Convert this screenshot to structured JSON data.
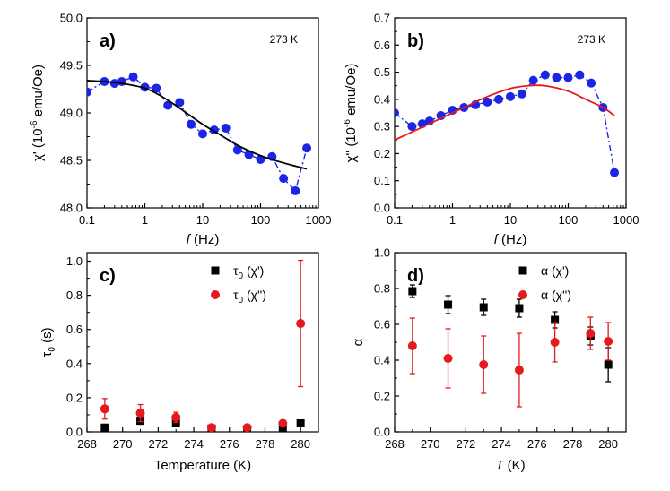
{
  "chart_data": [
    {
      "type": "scatter",
      "panel": "a)",
      "temperature_label": "273 K",
      "xscale": "log",
      "xlim": [
        0.1,
        1000
      ],
      "ylim": [
        48.0,
        50.0
      ],
      "xticks": [
        0.1,
        1,
        10,
        100,
        1000
      ],
      "xticklabels": [
        "0.1",
        "1",
        "10",
        "100",
        "1000"
      ],
      "yticks": [
        48.0,
        48.5,
        49.0,
        49.5,
        50.0
      ],
      "yticklabels": [
        "48.0",
        "48.5",
        "49.0",
        "49.5",
        "50.0"
      ],
      "xlabel_italic": "f",
      "xlabel_rest": " (Hz)",
      "ylabel": "χ' (10",
      "ylabel_exp": "-6",
      "ylabel_rest": " emu/Oe)",
      "series": [
        {
          "name": "data",
          "style": "blue markers with dash-dot line",
          "color": "#1c24e6",
          "x": [
            0.1,
            0.2,
            0.3,
            0.4,
            0.63,
            1.0,
            1.58,
            2.5,
            4.0,
            6.3,
            10,
            15.8,
            25,
            40,
            63,
            100,
            158,
            250,
            400,
            630
          ],
          "y": [
            49.22,
            49.33,
            49.31,
            49.33,
            49.38,
            49.27,
            49.26,
            49.08,
            49.11,
            48.88,
            48.78,
            48.82,
            48.84,
            48.61,
            48.56,
            48.51,
            48.54,
            48.31,
            48.18,
            48.63
          ]
        },
        {
          "name": "fit",
          "style": "solid line",
          "color": "#000000",
          "x": [
            0.1,
            0.2,
            0.4,
            1.0,
            2.0,
            4.0,
            10,
            20,
            40,
            100,
            200,
            400,
            630
          ],
          "y": [
            49.34,
            49.33,
            49.31,
            49.26,
            49.17,
            49.05,
            48.88,
            48.77,
            48.66,
            48.55,
            48.49,
            48.44,
            48.41
          ]
        }
      ]
    },
    {
      "type": "scatter",
      "panel": "b)",
      "temperature_label": "273 K",
      "xscale": "log",
      "xlim": [
        0.1,
        1000
      ],
      "ylim": [
        0.0,
        0.7
      ],
      "xticks": [
        0.1,
        1,
        10,
        100,
        1000
      ],
      "xticklabels": [
        "0.1",
        "1",
        "10",
        "100",
        "1000"
      ],
      "yticks": [
        0.0,
        0.1,
        0.2,
        0.3,
        0.4,
        0.5,
        0.6,
        0.7
      ],
      "yticklabels": [
        "0.0",
        "0.1",
        "0.2",
        "0.3",
        "0.4",
        "0.5",
        "0.6",
        "0.7"
      ],
      "xlabel_italic": "f",
      "xlabel_rest": " (Hz)",
      "ylabel": "χ'' (10",
      "ylabel_exp": "-6",
      "ylabel_rest": " emu/Oe)",
      "series": [
        {
          "name": "data",
          "style": "blue markers with dash-dot line",
          "color": "#1c24e6",
          "x": [
            0.1,
            0.2,
            0.3,
            0.4,
            0.63,
            1.0,
            1.58,
            2.5,
            4.0,
            6.3,
            10,
            15.8,
            25,
            40,
            63,
            100,
            158,
            250,
            400,
            630
          ],
          "y": [
            0.35,
            0.3,
            0.31,
            0.32,
            0.34,
            0.36,
            0.37,
            0.38,
            0.39,
            0.4,
            0.41,
            0.42,
            0.47,
            0.49,
            0.48,
            0.48,
            0.49,
            0.46,
            0.37,
            0.13
          ]
        },
        {
          "name": "fit",
          "style": "solid line",
          "color": "#e41a1c",
          "x": [
            0.1,
            0.2,
            0.4,
            1.0,
            2.0,
            4.0,
            10,
            20,
            40,
            100,
            200,
            400,
            630
          ],
          "y": [
            0.25,
            0.28,
            0.31,
            0.35,
            0.38,
            0.41,
            0.44,
            0.45,
            0.45,
            0.43,
            0.4,
            0.37,
            0.34
          ]
        }
      ]
    },
    {
      "type": "scatter",
      "panel": "c)",
      "xlim": [
        268,
        281
      ],
      "ylim": [
        0.0,
        1.05
      ],
      "xticks": [
        268,
        270,
        272,
        274,
        276,
        278,
        280
      ],
      "xticklabels": [
        "268",
        "270",
        "272",
        "274",
        "276",
        "278",
        "280"
      ],
      "yticks": [
        0.0,
        0.2,
        0.4,
        0.6,
        0.8,
        1.0
      ],
      "yticklabels": [
        "0.0",
        "0.2",
        "0.4",
        "0.6",
        "0.8",
        "1.0"
      ],
      "xlabel": "Temperature (K)",
      "ylabel": "τ",
      "ylabel_sub": "0",
      "ylabel_rest": " (s)",
      "legend": "top-right",
      "series": [
        {
          "name": "τ0 (χ')",
          "legend_sym": "τ",
          "legend_sub": "0",
          "legend_rest": " (χ')",
          "marker": "square",
          "color": "#000000",
          "x": [
            269,
            271,
            273,
            275,
            277,
            279,
            280
          ],
          "y": [
            0.025,
            0.065,
            0.05,
            0.02,
            0.015,
            0.02,
            0.05
          ],
          "err": [
            0.01,
            0.02,
            0.02,
            0.005,
            0.005,
            0.005,
            0.0
          ]
        },
        {
          "name": "τ0 (χ'')",
          "legend_sym": "τ",
          "legend_sub": "0",
          "legend_rest": " (χ'')",
          "marker": "circle",
          "color": "#e41a1c",
          "x": [
            269,
            271,
            273,
            275,
            277,
            279,
            280
          ],
          "y": [
            0.135,
            0.11,
            0.085,
            0.025,
            0.025,
            0.05,
            0.635
          ],
          "err": [
            0.06,
            0.05,
            0.03,
            0.01,
            0.01,
            0.01,
            0.37
          ]
        }
      ]
    },
    {
      "type": "scatter",
      "panel": "d)",
      "xlim": [
        268,
        281
      ],
      "ylim": [
        0.0,
        1.0
      ],
      "xticks": [
        268,
        270,
        272,
        274,
        276,
        278,
        280
      ],
      "xticklabels": [
        "268",
        "270",
        "272",
        "274",
        "276",
        "278",
        "280"
      ],
      "yticks": [
        0.0,
        0.2,
        0.4,
        0.6,
        0.8,
        1.0
      ],
      "yticklabels": [
        "0.0",
        "0.2",
        "0.4",
        "0.6",
        "0.8",
        "1.0"
      ],
      "xlabel_italic": "T",
      "xlabel_rest": " (K)",
      "ylabel": "α",
      "legend": "top-right",
      "series": [
        {
          "name": "α (χ')",
          "legend_sym": "α",
          "legend_sub": "",
          "legend_rest": " (χ')",
          "marker": "square",
          "color": "#000000",
          "x": [
            269,
            271,
            273,
            275,
            277,
            279,
            280
          ],
          "y": [
            0.785,
            0.71,
            0.695,
            0.69,
            0.625,
            0.535,
            0.375
          ],
          "err": [
            0.035,
            0.05,
            0.045,
            0.05,
            0.045,
            0.05,
            0.095
          ]
        },
        {
          "name": "α (χ'')",
          "legend_sym": "α",
          "legend_sub": "",
          "legend_rest": " (χ'')",
          "marker": "circle",
          "color": "#e41a1c",
          "x": [
            269,
            271,
            273,
            275,
            277,
            279,
            280
          ],
          "y": [
            0.48,
            0.41,
            0.375,
            0.345,
            0.5,
            0.55,
            0.505
          ],
          "err": [
            0.155,
            0.165,
            0.16,
            0.205,
            0.11,
            0.09,
            0.105
          ]
        }
      ]
    }
  ]
}
